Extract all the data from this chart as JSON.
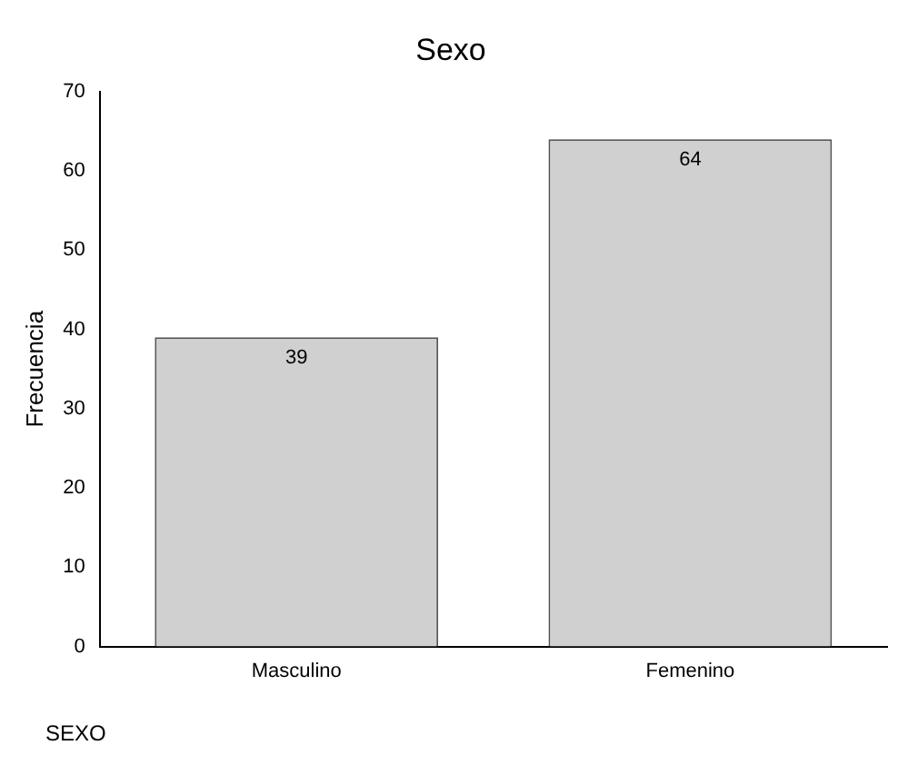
{
  "chart_data": {
    "type": "bar",
    "title": "Sexo",
    "xlabel": "SEXO",
    "ylabel": "Frecuencia",
    "categories": [
      "Masculino",
      "Femenino"
    ],
    "values": [
      39,
      64
    ],
    "color": "#d0d0d0",
    "ylim": [
      0,
      70
    ],
    "yticks": [
      0,
      10,
      20,
      30,
      40,
      50,
      60,
      70
    ],
    "grid": false,
    "data_labels": true
  }
}
